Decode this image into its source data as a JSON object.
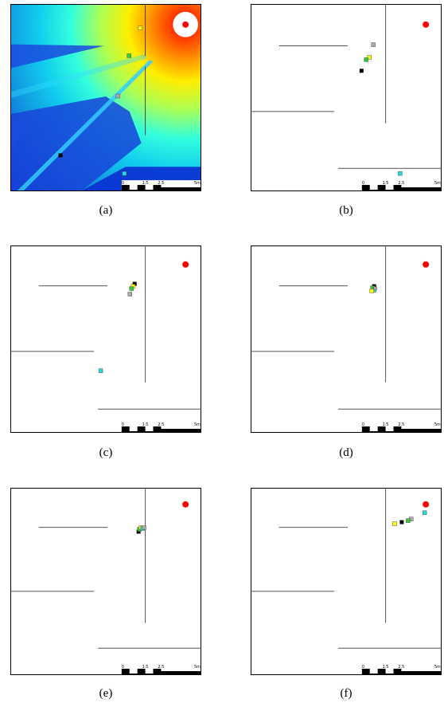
{
  "panels": [
    {
      "id": "a",
      "caption": "(a)",
      "heatmap": true
    },
    {
      "id": "b",
      "caption": "(b)",
      "heatmap": false
    },
    {
      "id": "c",
      "caption": "(c)",
      "heatmap": false
    },
    {
      "id": "d",
      "caption": "(d)",
      "heatmap": false
    },
    {
      "id": "e",
      "caption": "(e)",
      "heatmap": false
    },
    {
      "id": "f",
      "caption": "(f)",
      "heatmap": false
    }
  ],
  "scale_bar": {
    "labels": [
      "0",
      "1.5",
      "2.5",
      "5"
    ],
    "unit": "m"
  },
  "colors": {
    "source": "#ff0000",
    "marker_black": "#000000",
    "marker_gray": "#aaaaaa",
    "marker_yellow": "#ffff00",
    "marker_green": "#33cc33",
    "marker_cyan": "#22dddd",
    "wall": "#555555"
  }
}
